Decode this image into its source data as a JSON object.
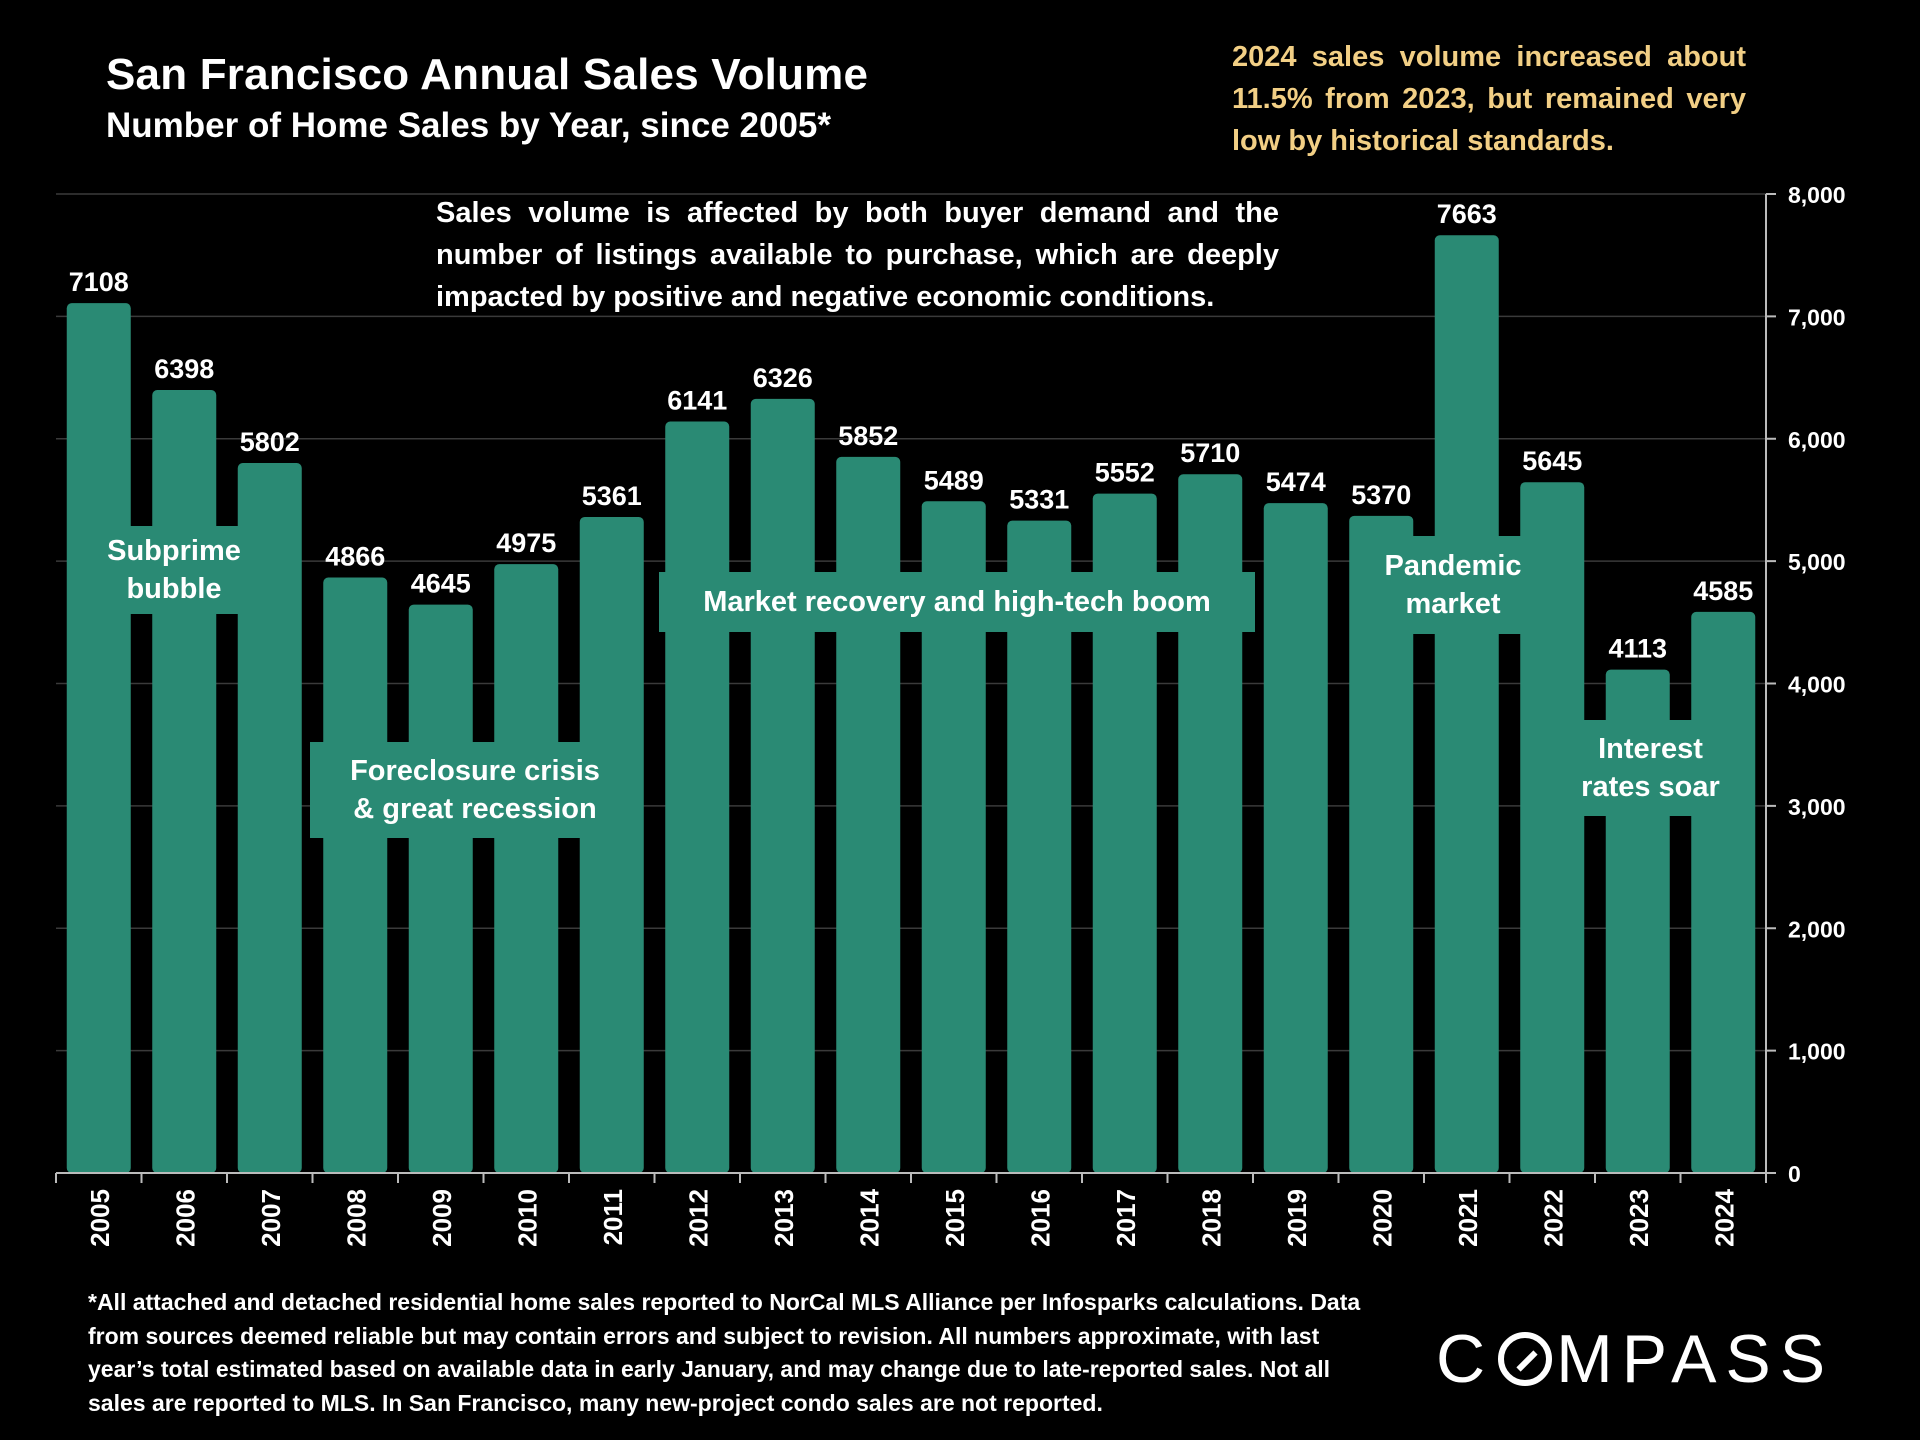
{
  "header": {
    "title": "San Francisco Annual Sales Volume",
    "subtitle": "Number of Home Sales by Year, since 2005*"
  },
  "callout": "2024 sales volume increased about 11.5% from 2023, but remained very low by historical standards.",
  "note": "Sales volume is affected by both buyer demand and the number of listings available to purchase, which are deeply impacted by positive and negative economic conditions.",
  "annotations": {
    "subprime": "Subprime\nbubble",
    "foreclosure": "Foreclosure crisis\n& great recession",
    "recovery": "Market recovery and high-tech boom",
    "pandemic": "Pandemic\nmarket",
    "interest": "Interest\nrates soar"
  },
  "footnote": "*All attached and detached residential home sales reported to NorCal MLS Alliance per Infosparks calculations. Data from sources deemed reliable but may contain errors and subject to revision. All numbers approximate, with last year’s total estimated based on available data in early January, and may change due to late-reported sales. Not all sales are reported to MLS. In San Francisco, many new-project condo sales are not reported.",
  "logo": {
    "text_before": "C",
    "text_after": "MPASS"
  },
  "colors": {
    "bar": "#2a8a74",
    "callout": "#f2cf85",
    "background": "#000000",
    "grid": "#3a3a3a"
  },
  "chart_data": {
    "type": "bar",
    "categories": [
      "2005",
      "2006",
      "2007",
      "2008",
      "2009",
      "2010",
      "2011",
      "2012",
      "2013",
      "2014",
      "2015",
      "2016",
      "2017",
      "2018",
      "2019",
      "2020",
      "2021",
      "2022",
      "2023",
      "2024"
    ],
    "values": [
      7108,
      6398,
      5802,
      4866,
      4645,
      4975,
      5361,
      6141,
      6326,
      5852,
      5489,
      5331,
      5552,
      5710,
      5474,
      5370,
      7663,
      5645,
      4113,
      4585
    ],
    "value_labels": [
      "7108",
      "6398",
      "5802",
      "4866",
      "4645",
      "4975",
      "5361",
      "6141",
      "6326",
      "5852",
      "5489",
      "5331",
      "5552",
      "5710",
      "5474",
      "5370",
      "7663",
      "5645",
      "4113",
      "4585"
    ],
    "ylim": [
      0,
      8000
    ],
    "yticks": [
      0,
      1000,
      2000,
      3000,
      4000,
      5000,
      6000,
      7000,
      8000
    ],
    "ytick_labels": [
      "0",
      "1,000",
      "2,000",
      "3,000",
      "4,000",
      "5,000",
      "6,000",
      "7,000",
      "8,000"
    ],
    "y_axis_position": "right",
    "grid": true,
    "xlabel": "",
    "ylabel": ""
  }
}
